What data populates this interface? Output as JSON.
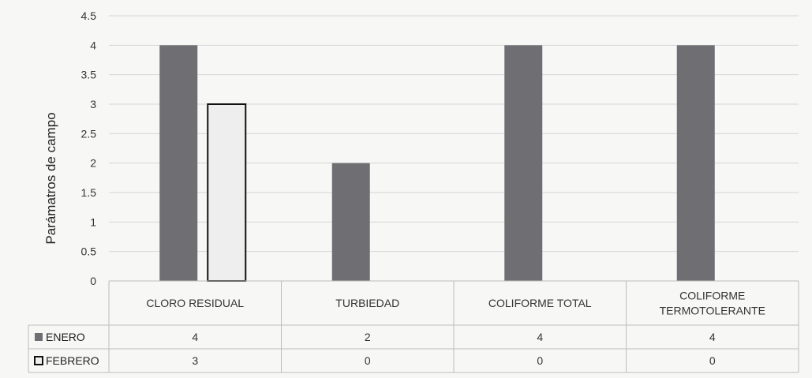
{
  "chart_data": {
    "type": "bar",
    "ylabel": "Parámatros de campo",
    "ylim": [
      0,
      4.5
    ],
    "yticks": [
      "0",
      "0.5",
      "1",
      "1.5",
      "2",
      "2.5",
      "3",
      "3.5",
      "4",
      "4.5"
    ],
    "categories": [
      "CLORO RESIDUAL",
      "TURBIEDAD",
      "COLIFORME TOTAL",
      "COLIFORME TERMOTOLERANTE"
    ],
    "series": [
      {
        "name": "ENERO",
        "values": [
          4,
          2,
          4,
          4
        ],
        "color": "#6f6f73"
      },
      {
        "name": "FEBRERO",
        "values": [
          3,
          0,
          0,
          0
        ],
        "color": "#eeeeee"
      }
    ],
    "data_table": true,
    "grid": true
  }
}
